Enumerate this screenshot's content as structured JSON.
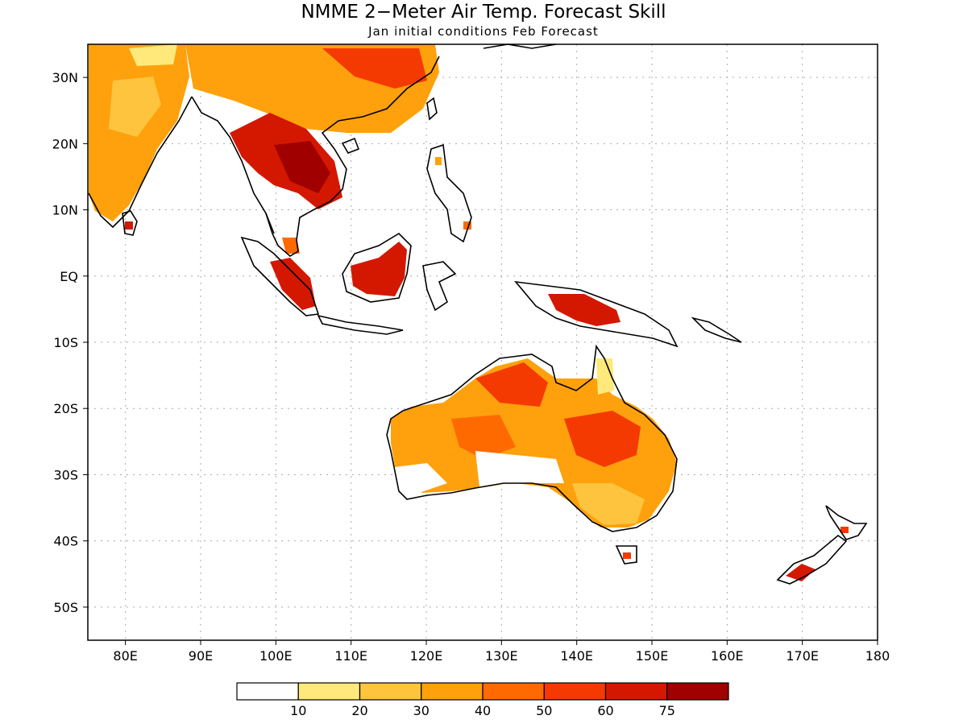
{
  "title": "NMME 2−Meter Air Temp. Forecast Skill",
  "subtitle": "Jan initial conditions  Feb Forecast",
  "map": {
    "lon_range": [
      75,
      180
    ],
    "lat_range": [
      -55,
      35
    ],
    "lat_ticks": [
      {
        "value": 30,
        "label": "30N"
      },
      {
        "value": 20,
        "label": "20N"
      },
      {
        "value": 10,
        "label": "10N"
      },
      {
        "value": 0,
        "label": "EQ"
      },
      {
        "value": -10,
        "label": "10S"
      },
      {
        "value": -20,
        "label": "20S"
      },
      {
        "value": -30,
        "label": "30S"
      },
      {
        "value": -40,
        "label": "40S"
      },
      {
        "value": -50,
        "label": "50S"
      }
    ],
    "lon_ticks": [
      {
        "value": 80,
        "label": "80E"
      },
      {
        "value": 90,
        "label": "90E"
      },
      {
        "value": 100,
        "label": "100E"
      },
      {
        "value": 110,
        "label": "110E"
      },
      {
        "value": 120,
        "label": "120E"
      },
      {
        "value": 130,
        "label": "130E"
      },
      {
        "value": 140,
        "label": "140E"
      },
      {
        "value": 150,
        "label": "150E"
      },
      {
        "value": 160,
        "label": "160E"
      },
      {
        "value": 170,
        "label": "170E"
      },
      {
        "value": 180,
        "label": "180"
      }
    ],
    "grid": true
  },
  "colorbar": {
    "labels": [
      "10",
      "20",
      "30",
      "40",
      "50",
      "60",
      "75"
    ],
    "colors": [
      "#ffffff",
      "#ffe97a",
      "#ffc43d",
      "#ffa10c",
      "#ff6a00",
      "#f43a00",
      "#d41800",
      "#a00000"
    ]
  }
}
